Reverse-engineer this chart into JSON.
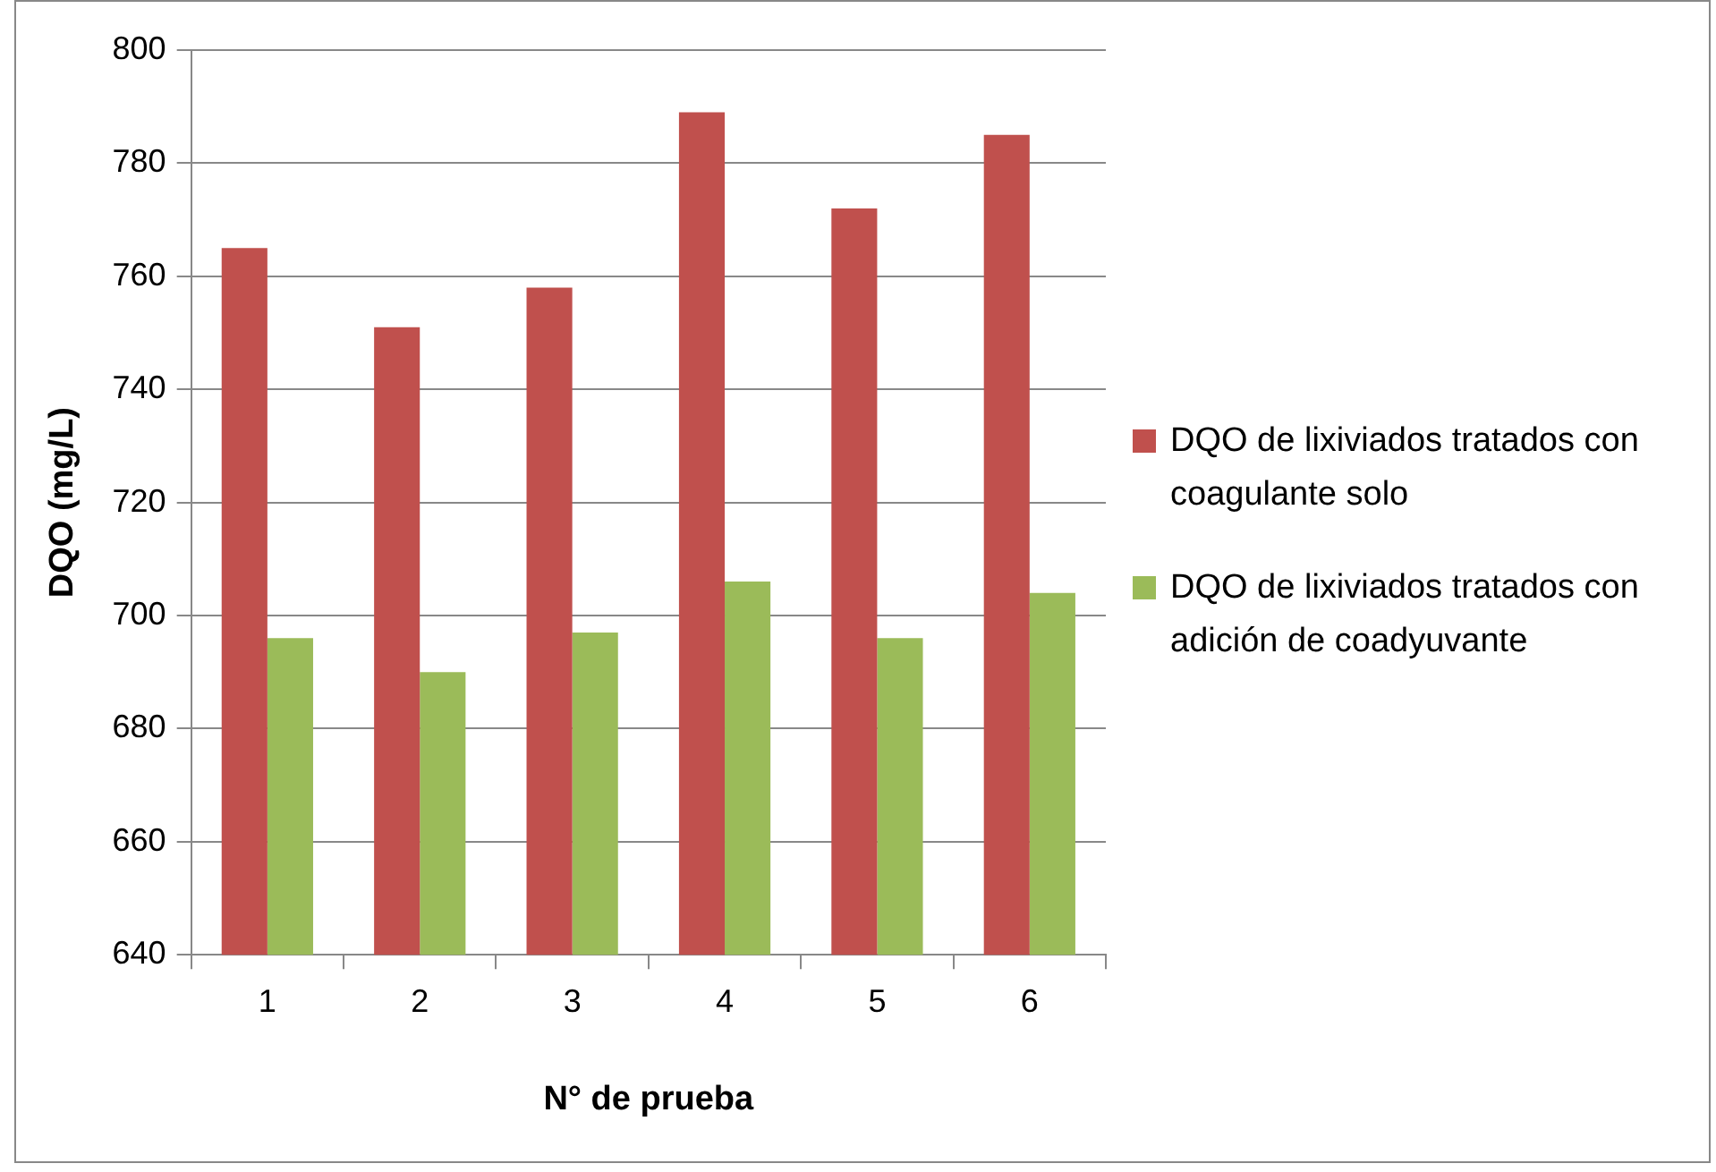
{
  "chart_data": {
    "type": "bar",
    "xlabel": "N° de prueba",
    "ylabel": "DQO (mg/L)",
    "categories": [
      "1",
      "2",
      "3",
      "4",
      "5",
      "6"
    ],
    "series": [
      {
        "name": "DQO de lixiviados tratados con coagulante solo",
        "color": "#c0504d",
        "values": [
          765,
          751,
          758,
          789,
          772,
          785
        ]
      },
      {
        "name": "DQO de lixiviados tratados con adición de coadyuvante",
        "color": "#9bbb59",
        "values": [
          696,
          690,
          697,
          706,
          696,
          704
        ]
      }
    ],
    "ylim": [
      640,
      800
    ],
    "yticks": [
      640,
      660,
      680,
      700,
      720,
      740,
      760,
      780,
      800
    ],
    "grid": "y",
    "legend": "right"
  }
}
